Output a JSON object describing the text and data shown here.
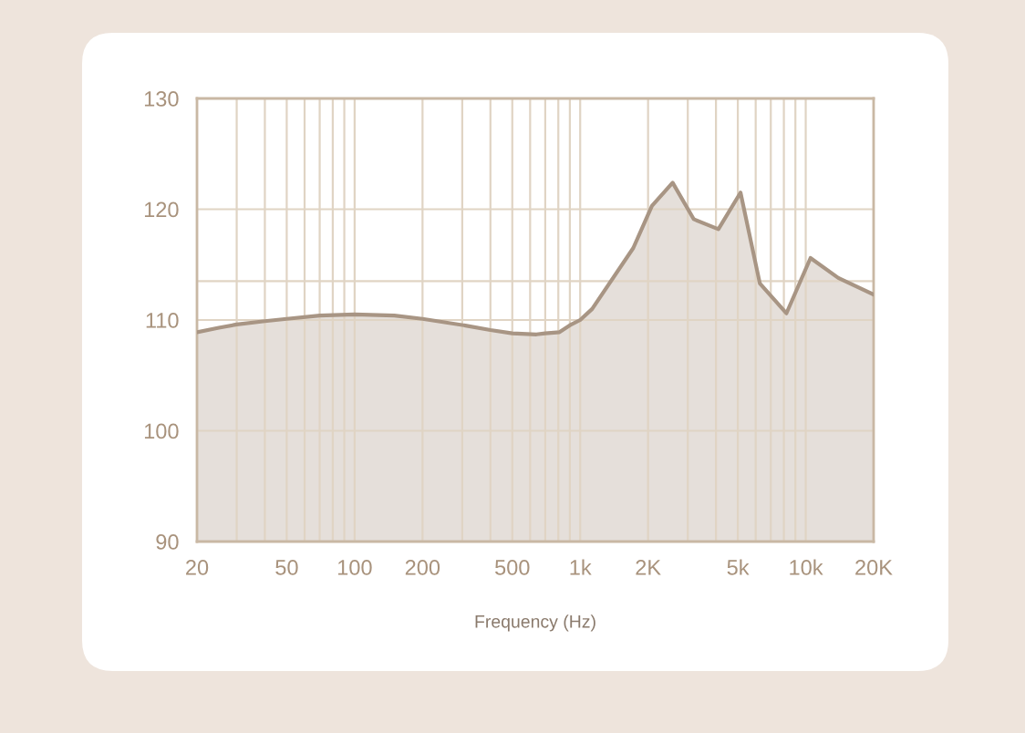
{
  "chart_data": {
    "type": "area",
    "xlabel": "Frequency (Hz)",
    "log": "x",
    "x": [
      20,
      25,
      30,
      40,
      50,
      70,
      100,
      150,
      200,
      310,
      400,
      500,
      640,
      700,
      810,
      914,
      1000,
      1130,
      1720,
      2080,
      2570,
      3190,
      4100,
      5140,
      6260,
      8210,
      10500,
      13950,
      20000
    ],
    "values": [
      108.9,
      109.3,
      109.6,
      109.9,
      110.1,
      110.4,
      110.5,
      110.4,
      110.1,
      109.5,
      109.1,
      108.8,
      108.7,
      108.8,
      108.9,
      109.6,
      110.0,
      111.0,
      116.5,
      120.3,
      122.4,
      119.1,
      118.2,
      121.5,
      113.3,
      110.6,
      115.6,
      113.8,
      112.3
    ],
    "color": "#a89584",
    "xlim": [
      20,
      20000
    ],
    "xticks": [
      20,
      {
        "value": 30,
        "label": null
      },
      {
        "value": 40,
        "label": null
      },
      50,
      {
        "value": 60,
        "label": null
      },
      {
        "value": 70,
        "label": null
      },
      {
        "value": 80,
        "label": null
      },
      {
        "value": 90,
        "label": null
      },
      100,
      200,
      {
        "value": 300,
        "label": null
      },
      {
        "value": 400,
        "label": null
      },
      500,
      {
        "value": 600,
        "label": null
      },
      {
        "value": 700,
        "label": null
      },
      {
        "value": 800,
        "label": null
      },
      {
        "value": 900,
        "label": null
      },
      {
        "value": 1000,
        "label": "1k"
      },
      {
        "value": 2000,
        "label": "2K"
      },
      {
        "value": 3000,
        "label": null
      },
      {
        "value": 4000,
        "label": null
      },
      {
        "value": 5000,
        "label": "5k"
      },
      {
        "value": 6000,
        "label": null
      },
      {
        "value": 7000,
        "label": null
      },
      {
        "value": 8000,
        "label": null
      },
      {
        "value": 9000,
        "label": null
      },
      {
        "value": 10000,
        "label": "10k"
      },
      {
        "value": 20000,
        "label": "20K"
      }
    ],
    "ylim": [
      90,
      130
    ],
    "yticks": [
      90,
      100,
      110,
      {
        "value": 113.5,
        "label": null
      },
      120,
      130
    ],
    "grid": true
  }
}
